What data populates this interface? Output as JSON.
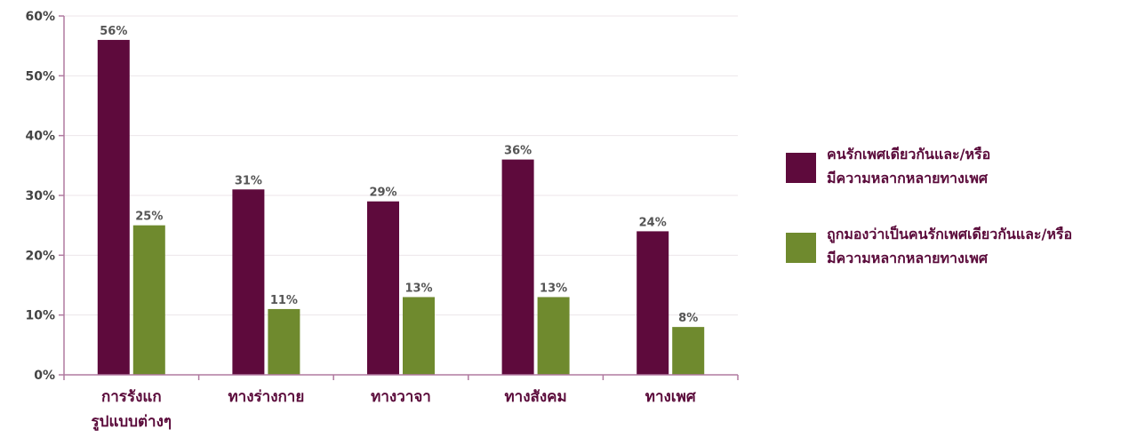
{
  "chart_data": {
    "type": "bar",
    "title": "",
    "xlabel": "",
    "ylabel": "",
    "ylim": [
      0,
      60
    ],
    "yticks": [
      "0%",
      "10%",
      "20%",
      "30%",
      "40%",
      "50%",
      "60%"
    ],
    "grid": true,
    "legend_position": "right",
    "categories": [
      "การรังแก\nรูปแบบต่างๆ",
      "ทางร่างกาย",
      "ทางวาจา",
      "ทางสังคม",
      "ทางเพศ"
    ],
    "series": [
      {
        "name": "คนรักเพศเดียวกันและ/หรือ\nมีความหลากหลายทางเพศ",
        "color": "#5e0a3c",
        "values": [
          56,
          31,
          29,
          36,
          24
        ],
        "labels": [
          "56%",
          "31%",
          "29%",
          "36%",
          "24%"
        ]
      },
      {
        "name": "ถูกมองว่าเป็นคนรักเพศเดียวกันและ/หรือ\nมีความหลากหลายทางเพศ",
        "color": "#6f8a2e",
        "values": [
          25,
          11,
          13,
          13,
          8
        ],
        "labels": [
          "25%",
          "11%",
          "13%",
          "13%",
          "8%"
        ]
      }
    ]
  }
}
